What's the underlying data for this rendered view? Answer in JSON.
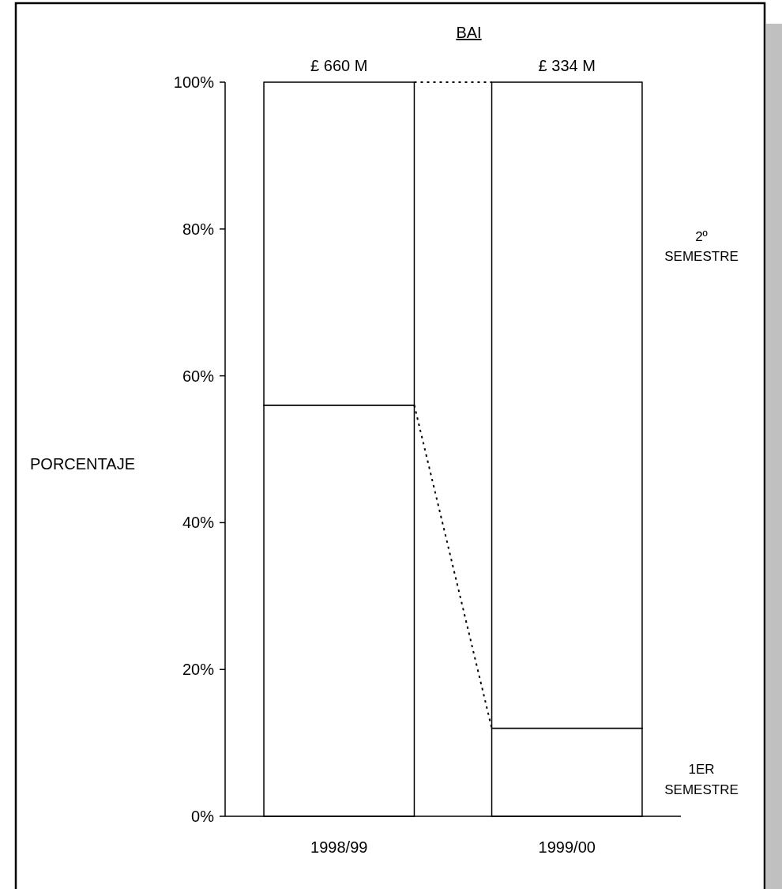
{
  "chart_data": {
    "type": "bar",
    "title": "BAI",
    "ylabel": "PORCENTAJE",
    "categories": [
      "1998/99",
      "1999/00"
    ],
    "stacked": true,
    "series": [
      {
        "name": "1ER SEMESTRE",
        "color": "#ffffff",
        "values": [
          56,
          12
        ]
      },
      {
        "name": "2º SEMESTRE",
        "color": "#ffffff",
        "values": [
          44,
          88
        ]
      }
    ],
    "annotations": [
      {
        "text": "£ 660 M",
        "x": "1998/99",
        "y": 100
      },
      {
        "text": "£ 334 M",
        "x": "1999/00",
        "y": 100
      }
    ],
    "ylim": [
      0,
      100
    ],
    "yticks": [
      {
        "value": 0,
        "label": "0%"
      },
      {
        "value": 20,
        "label": "20%"
      },
      {
        "value": 40,
        "label": "40%"
      },
      {
        "value": 60,
        "label": "60%"
      },
      {
        "value": 80,
        "label": "80%"
      },
      {
        "value": 100,
        "label": "100%"
      }
    ],
    "grid": false,
    "legend": "right"
  }
}
